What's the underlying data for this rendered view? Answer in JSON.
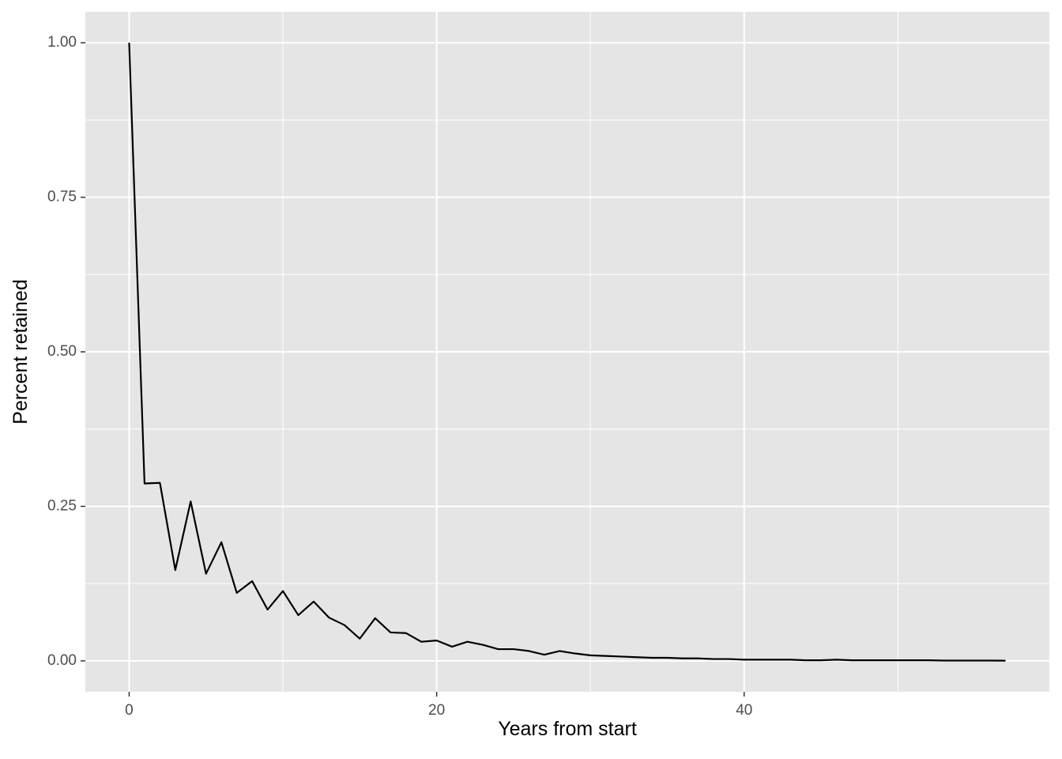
{
  "chart_data": {
    "type": "line",
    "x_label": "Years from start",
    "y_label": "Percent retained",
    "x": [
      0,
      1,
      2,
      3,
      4,
      5,
      6,
      7,
      8,
      9,
      10,
      11,
      12,
      13,
      14,
      15,
      16,
      17,
      18,
      19,
      20,
      21,
      22,
      23,
      24,
      25,
      26,
      27,
      28,
      29,
      30,
      31,
      32,
      33,
      34,
      35,
      36,
      37,
      38,
      39,
      40,
      41,
      42,
      43,
      44,
      45,
      46,
      47,
      48,
      49,
      50,
      51,
      52,
      53,
      54,
      55,
      56,
      57
    ],
    "series": [
      {
        "color": "#000000",
        "values": [
          1.0,
          0.287,
          0.288,
          0.147,
          0.258,
          0.141,
          0.192,
          0.11,
          0.129,
          0.083,
          0.113,
          0.074,
          0.096,
          0.07,
          0.058,
          0.036,
          0.069,
          0.046,
          0.045,
          0.031,
          0.033,
          0.023,
          0.031,
          0.026,
          0.019,
          0.019,
          0.016,
          0.01,
          0.016,
          0.012,
          0.009,
          0.008,
          0.007,
          0.006,
          0.005,
          0.005,
          0.004,
          0.004,
          0.003,
          0.003,
          0.002,
          0.002,
          0.002,
          0.002,
          0.001,
          0.001,
          0.002,
          0.001,
          0.001,
          0.001,
          0.001,
          0.001,
          0.001,
          0.0005,
          0.0005,
          0.0005,
          0.0005,
          0.0003
        ]
      }
    ],
    "xlim": [
      -2.85,
      59.85
    ],
    "ylim": [
      -0.05,
      1.05
    ],
    "xticks": [
      0,
      20,
      40
    ],
    "yticks": [
      {
        "value": 0,
        "label": "0.00"
      },
      {
        "value": 0.25,
        "label": "0.25"
      },
      {
        "value": 0.5,
        "label": "0.50"
      },
      {
        "value": 0.75,
        "label": "0.75"
      },
      {
        "value": 1,
        "label": "1.00"
      }
    ],
    "x_minor_grid": [
      10,
      30,
      50
    ],
    "y_minor_grid": [
      0.125,
      0.375,
      0.625,
      0.875
    ],
    "grid": true,
    "panel_color": "#e5e5e5"
  }
}
